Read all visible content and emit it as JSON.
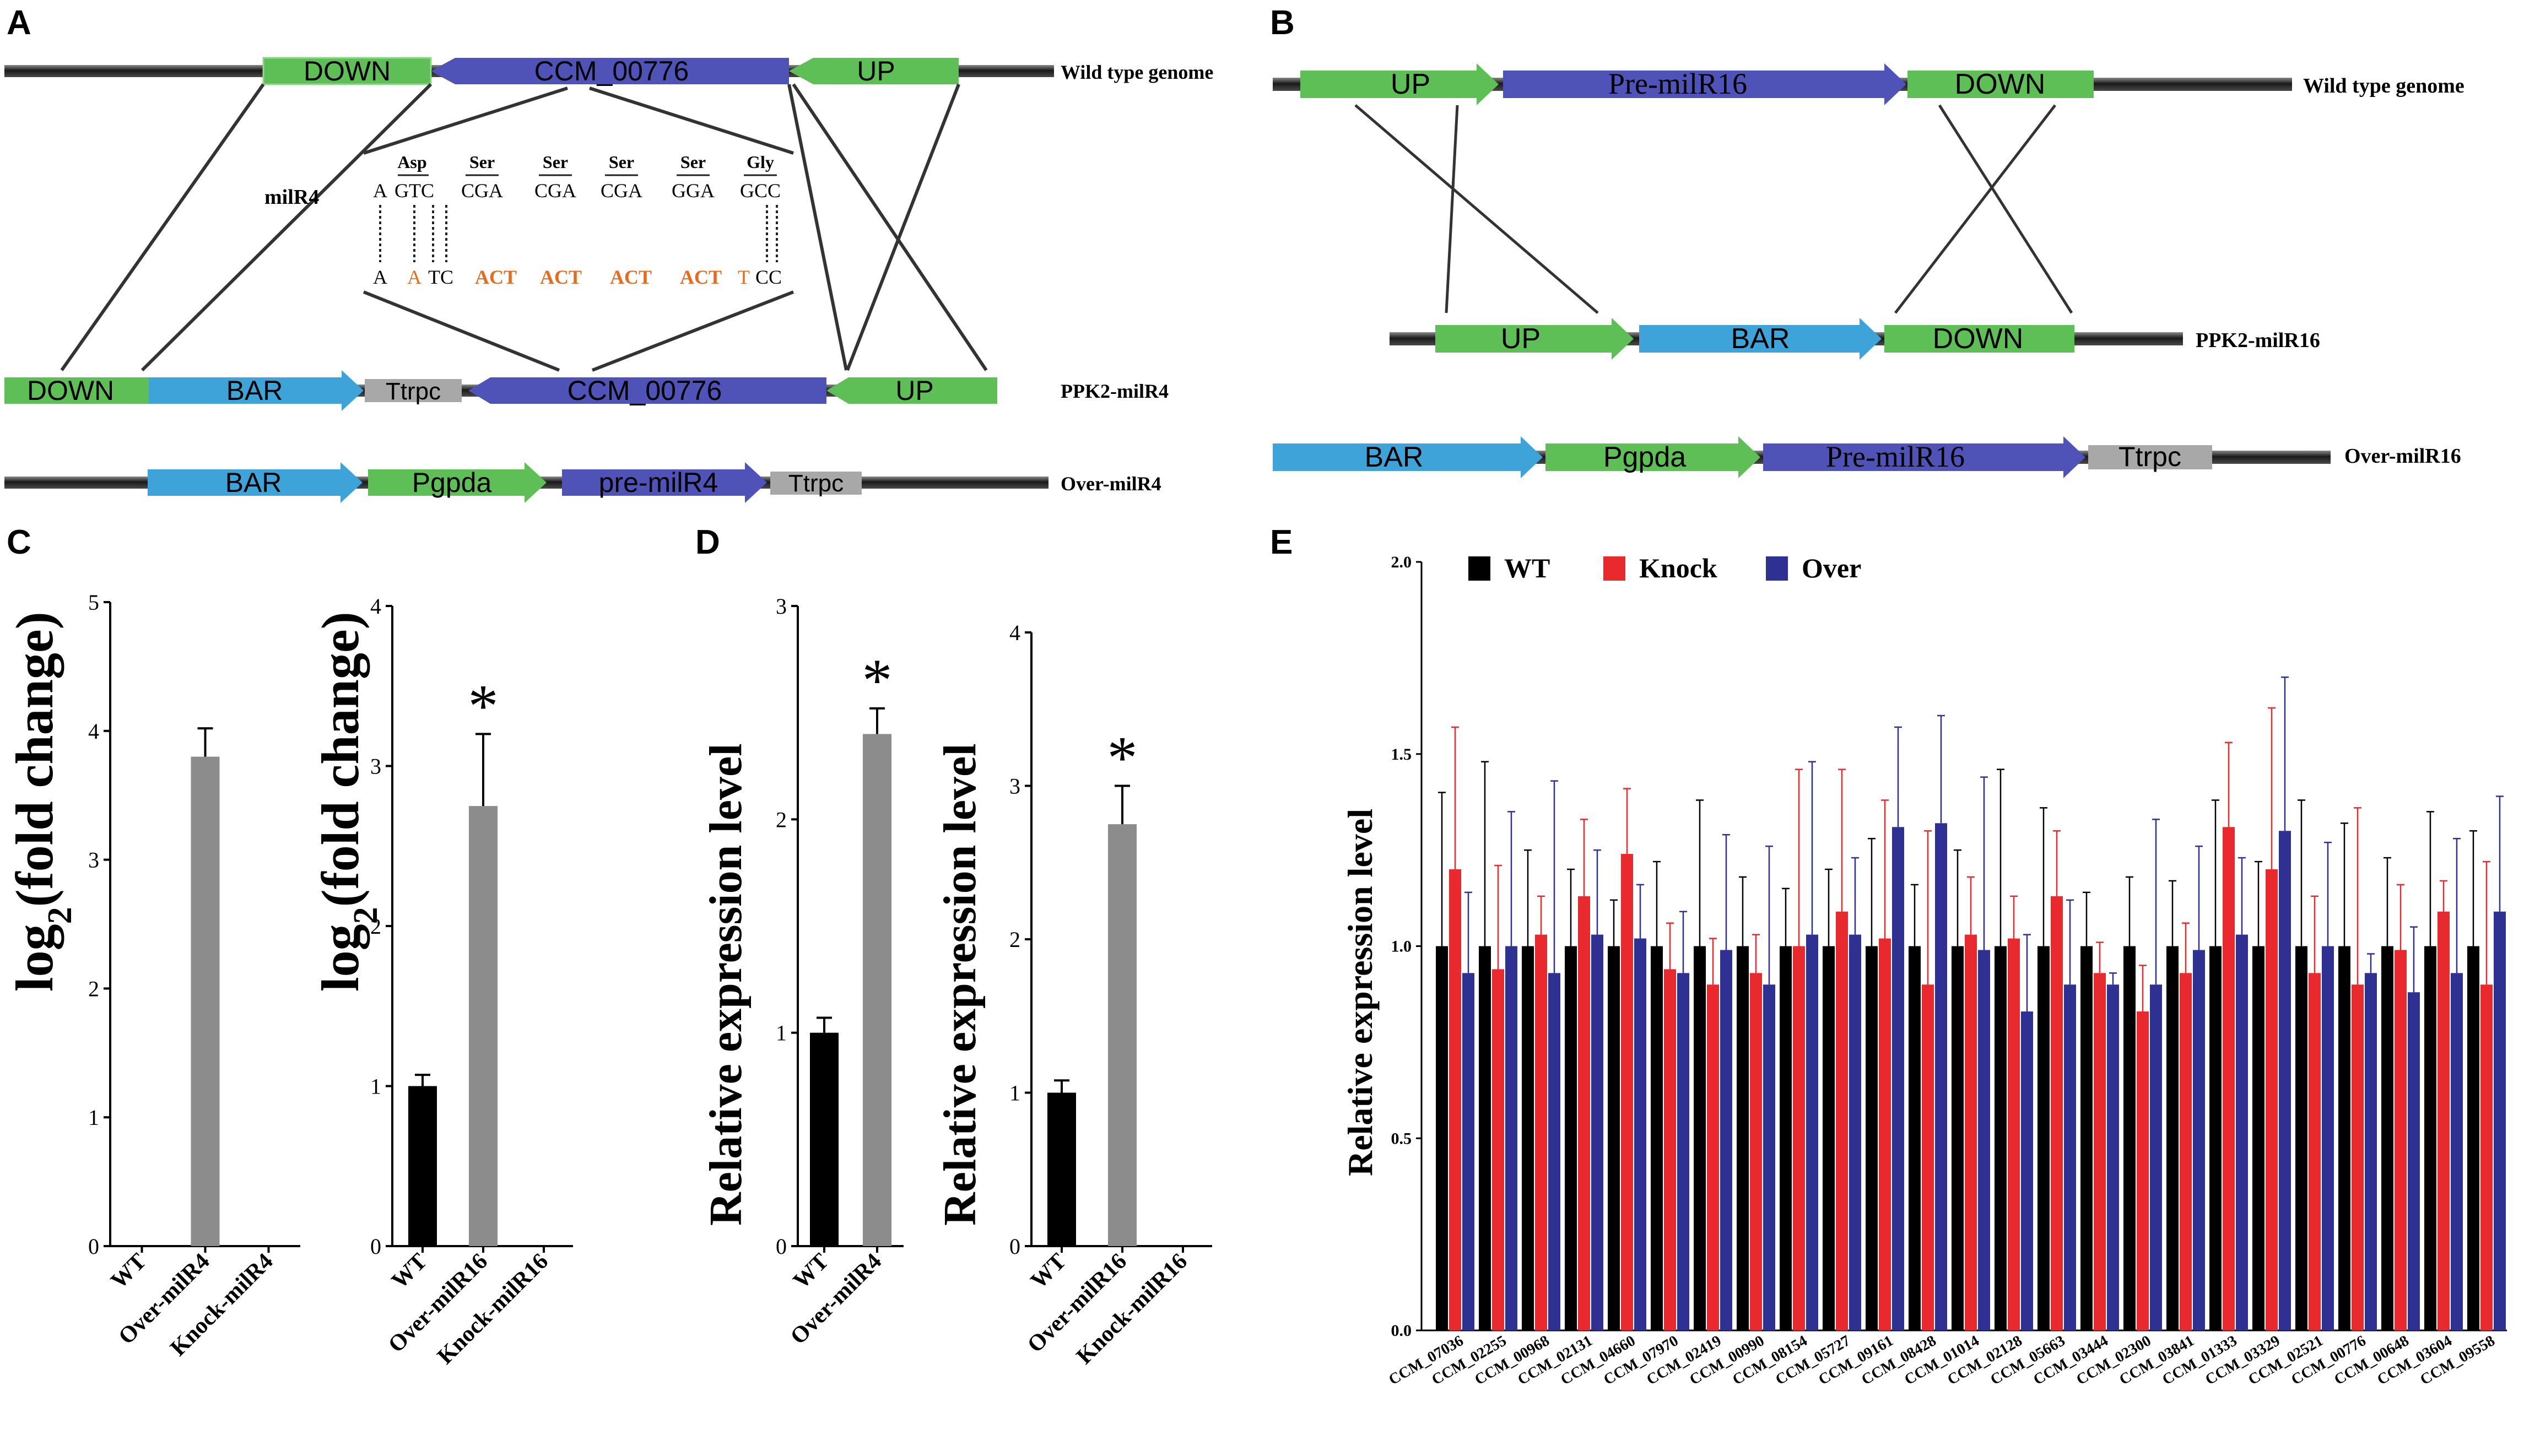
{
  "panels": {
    "A": {
      "letter": "A",
      "track_labels": [
        "Wild type genome",
        "PPK2-milR4",
        "Over-milR4"
      ],
      "wt_genes": [
        "DOWN",
        "CCM_00776",
        "UP"
      ],
      "ppk2_genes": [
        "DOWN",
        "BAR",
        "Ttrpc",
        "CCM_00776",
        "UP"
      ],
      "over_genes": [
        "BAR",
        "Pgpda",
        "pre-milR4",
        "Ttrpc"
      ],
      "milr_label": "milR4",
      "amino_acids": [
        "Asp",
        "Ser",
        "Ser",
        "Ser",
        "Ser",
        "Gly"
      ],
      "wt_codon_prefix": "A",
      "wt_codons": [
        "GTC",
        "CGA",
        "CGA",
        "CGA",
        "GGA",
        "GCC"
      ],
      "mut_prefix": "A",
      "mut_first_codon": [
        "A",
        "TC"
      ],
      "mut_act": [
        "ACT",
        "ACT",
        "ACT",
        "ACT"
      ],
      "mut_last": [
        "T",
        "CC"
      ]
    },
    "B": {
      "letter": "B",
      "track_labels": [
        "Wild type genome",
        "PPK2-milR16",
        "Over-milR16"
      ],
      "wt_genes": [
        "UP",
        "Pre-milR16",
        "DOWN"
      ],
      "ppk2_genes": [
        "UP",
        "BAR",
        "DOWN"
      ],
      "over_genes": [
        "BAR",
        "Pgpda",
        "Pre-milR16",
        "Ttrpc"
      ]
    },
    "C": {
      "letter": "C",
      "ylabel_main": "log",
      "ylabel_sub": "2",
      "ylabel_rest": "(fold change)",
      "sig_mark": "*"
    },
    "D": {
      "letter": "D",
      "ylabel": "Relative expression level",
      "sig_mark": "*"
    },
    "E": {
      "letter": "E",
      "ylabel": "Relative expression level",
      "legend": [
        "WT",
        "Knock",
        "Over"
      ]
    }
  },
  "colors": {
    "green": "#5fbf57",
    "blue": "#4f52b6",
    "lightblue": "#3ea3d8",
    "grey": "#a8a8a8",
    "wt_bar": "#000000",
    "knock": "#e8292e",
    "over": "#2e3192",
    "orange": "#e86a1e",
    "chart_grey": "#8c8c8c"
  },
  "chart_data": [
    {
      "id": "C1",
      "type": "bar",
      "categories": [
        "WT",
        "Over-milR4",
        "Knock-milR4"
      ],
      "values": [
        0,
        3.8,
        0
      ],
      "errors": [
        0,
        0.22,
        0
      ],
      "colors": [
        "#000000",
        "#8c8c8c",
        "#000000"
      ],
      "ylim": [
        0,
        5
      ],
      "yticks": [
        "0",
        "1",
        "2",
        "3",
        "4",
        "5"
      ],
      "significant": [
        false,
        false,
        false
      ],
      "ylabel": "log2(fold change)"
    },
    {
      "id": "C2",
      "type": "bar",
      "categories": [
        "WT",
        "Over-milR16",
        "Knock-milR16"
      ],
      "values": [
        1.0,
        2.75,
        0
      ],
      "errors": [
        0.07,
        0.45,
        0
      ],
      "colors": [
        "#000000",
        "#8c8c8c",
        "#000000"
      ],
      "ylim": [
        0,
        4
      ],
      "yticks": [
        "0",
        "1",
        "2",
        "3",
        "4"
      ],
      "significant": [
        false,
        true,
        false
      ],
      "ylabel": "log2(fold change)"
    },
    {
      "id": "D1",
      "type": "bar",
      "categories": [
        "WT",
        "Over-milR4"
      ],
      "values": [
        1.0,
        2.4
      ],
      "errors": [
        0.07,
        0.12
      ],
      "colors": [
        "#000000",
        "#8c8c8c"
      ],
      "ylim": [
        0,
        3
      ],
      "yticks": [
        "0",
        "1",
        "2",
        "3"
      ],
      "significant": [
        false,
        true
      ],
      "ylabel": "Relative expression level"
    },
    {
      "id": "D2",
      "type": "bar",
      "categories": [
        "WT",
        "Over-milR16",
        "Knock-milR16"
      ],
      "values": [
        1.0,
        2.75,
        0
      ],
      "errors": [
        0.08,
        0.25,
        0
      ],
      "colors": [
        "#000000",
        "#8c8c8c",
        "#000000"
      ],
      "ylim": [
        0,
        4
      ],
      "yticks": [
        "0",
        "1",
        "2",
        "3",
        "4"
      ],
      "significant": [
        false,
        true,
        false
      ],
      "ylabel": "Relative expression level"
    },
    {
      "id": "E",
      "type": "bar",
      "ylabel": "Relative expression level",
      "ylim": [
        0,
        2.0
      ],
      "yticks": [
        "0.0",
        "0.5",
        "1.0",
        "1.5",
        "2.0"
      ],
      "categories": [
        "CCM_07036",
        "CCM_02255",
        "CCM_00968",
        "CCM_02131",
        "CCM_04660",
        "CCM_07970",
        "CCM_02419",
        "CCM_00990",
        "CCM_08154",
        "CCM_05727",
        "CCM_09161",
        "CCM_08428",
        "CCM_01014",
        "CCM_02128",
        "CCM_05663",
        "CCM_03444",
        "CCM_02300",
        "CCM_03841",
        "CCM_01333",
        "CCM_03329",
        "CCM_02521",
        "CCM_00776",
        "CCM_00648",
        "CCM_03604",
        "CCM_09558"
      ],
      "series": [
        {
          "name": "WT",
          "values": [
            1.0,
            1.0,
            1.0,
            1.0,
            1.0,
            1.0,
            1.0,
            1.0,
            1.0,
            1.0,
            1.0,
            1.0,
            1.0,
            1.0,
            1.0,
            1.0,
            1.0,
            1.0,
            1.0,
            1.0,
            1.0,
            1.0,
            1.0,
            1.0,
            1.0
          ],
          "errors": [
            0.4,
            0.48,
            0.25,
            0.2,
            0.12,
            0.22,
            0.38,
            0.18,
            0.15,
            0.2,
            0.28,
            0.16,
            0.25,
            0.46,
            0.36,
            0.14,
            0.18,
            0.17,
            0.38,
            0.22,
            0.38,
            0.32,
            0.23,
            0.35,
            0.3
          ]
        },
        {
          "name": "Knock",
          "values": [
            1.2,
            0.94,
            1.03,
            1.13,
            1.24,
            0.94,
            0.9,
            0.93,
            1.0,
            1.09,
            1.02,
            0.9,
            1.03,
            1.02,
            1.13,
            0.93,
            0.83,
            0.93,
            1.31,
            1.2,
            0.93,
            0.9,
            0.99,
            1.09,
            0.9
          ],
          "errors": [
            0.37,
            0.27,
            0.1,
            0.2,
            0.17,
            0.12,
            0.12,
            0.1,
            0.46,
            0.37,
            0.36,
            0.4,
            0.15,
            0.11,
            0.17,
            0.08,
            0.12,
            0.13,
            0.22,
            0.42,
            0.2,
            0.46,
            0.17,
            0.08,
            0.32
          ]
        },
        {
          "name": "Over",
          "values": [
            0.93,
            1.0,
            0.93,
            1.03,
            1.02,
            0.93,
            0.99,
            0.9,
            1.03,
            1.03,
            1.31,
            1.32,
            0.99,
            0.83,
            0.9,
            0.9,
            0.9,
            0.99,
            1.03,
            1.3,
            1.0,
            0.93,
            0.88,
            0.93,
            1.09
          ]
        }
      ],
      "over_errors": [
        0.21,
        0.35,
        0.5,
        0.22,
        0.14,
        0.16,
        0.3,
        0.36,
        0.45,
        0.2,
        0.26,
        0.28,
        0.45,
        0.2,
        0.22,
        0.03,
        0.43,
        0.27,
        0.2,
        0.4,
        0.27,
        0.05,
        0.17,
        0.35,
        0.3
      ]
    }
  ]
}
